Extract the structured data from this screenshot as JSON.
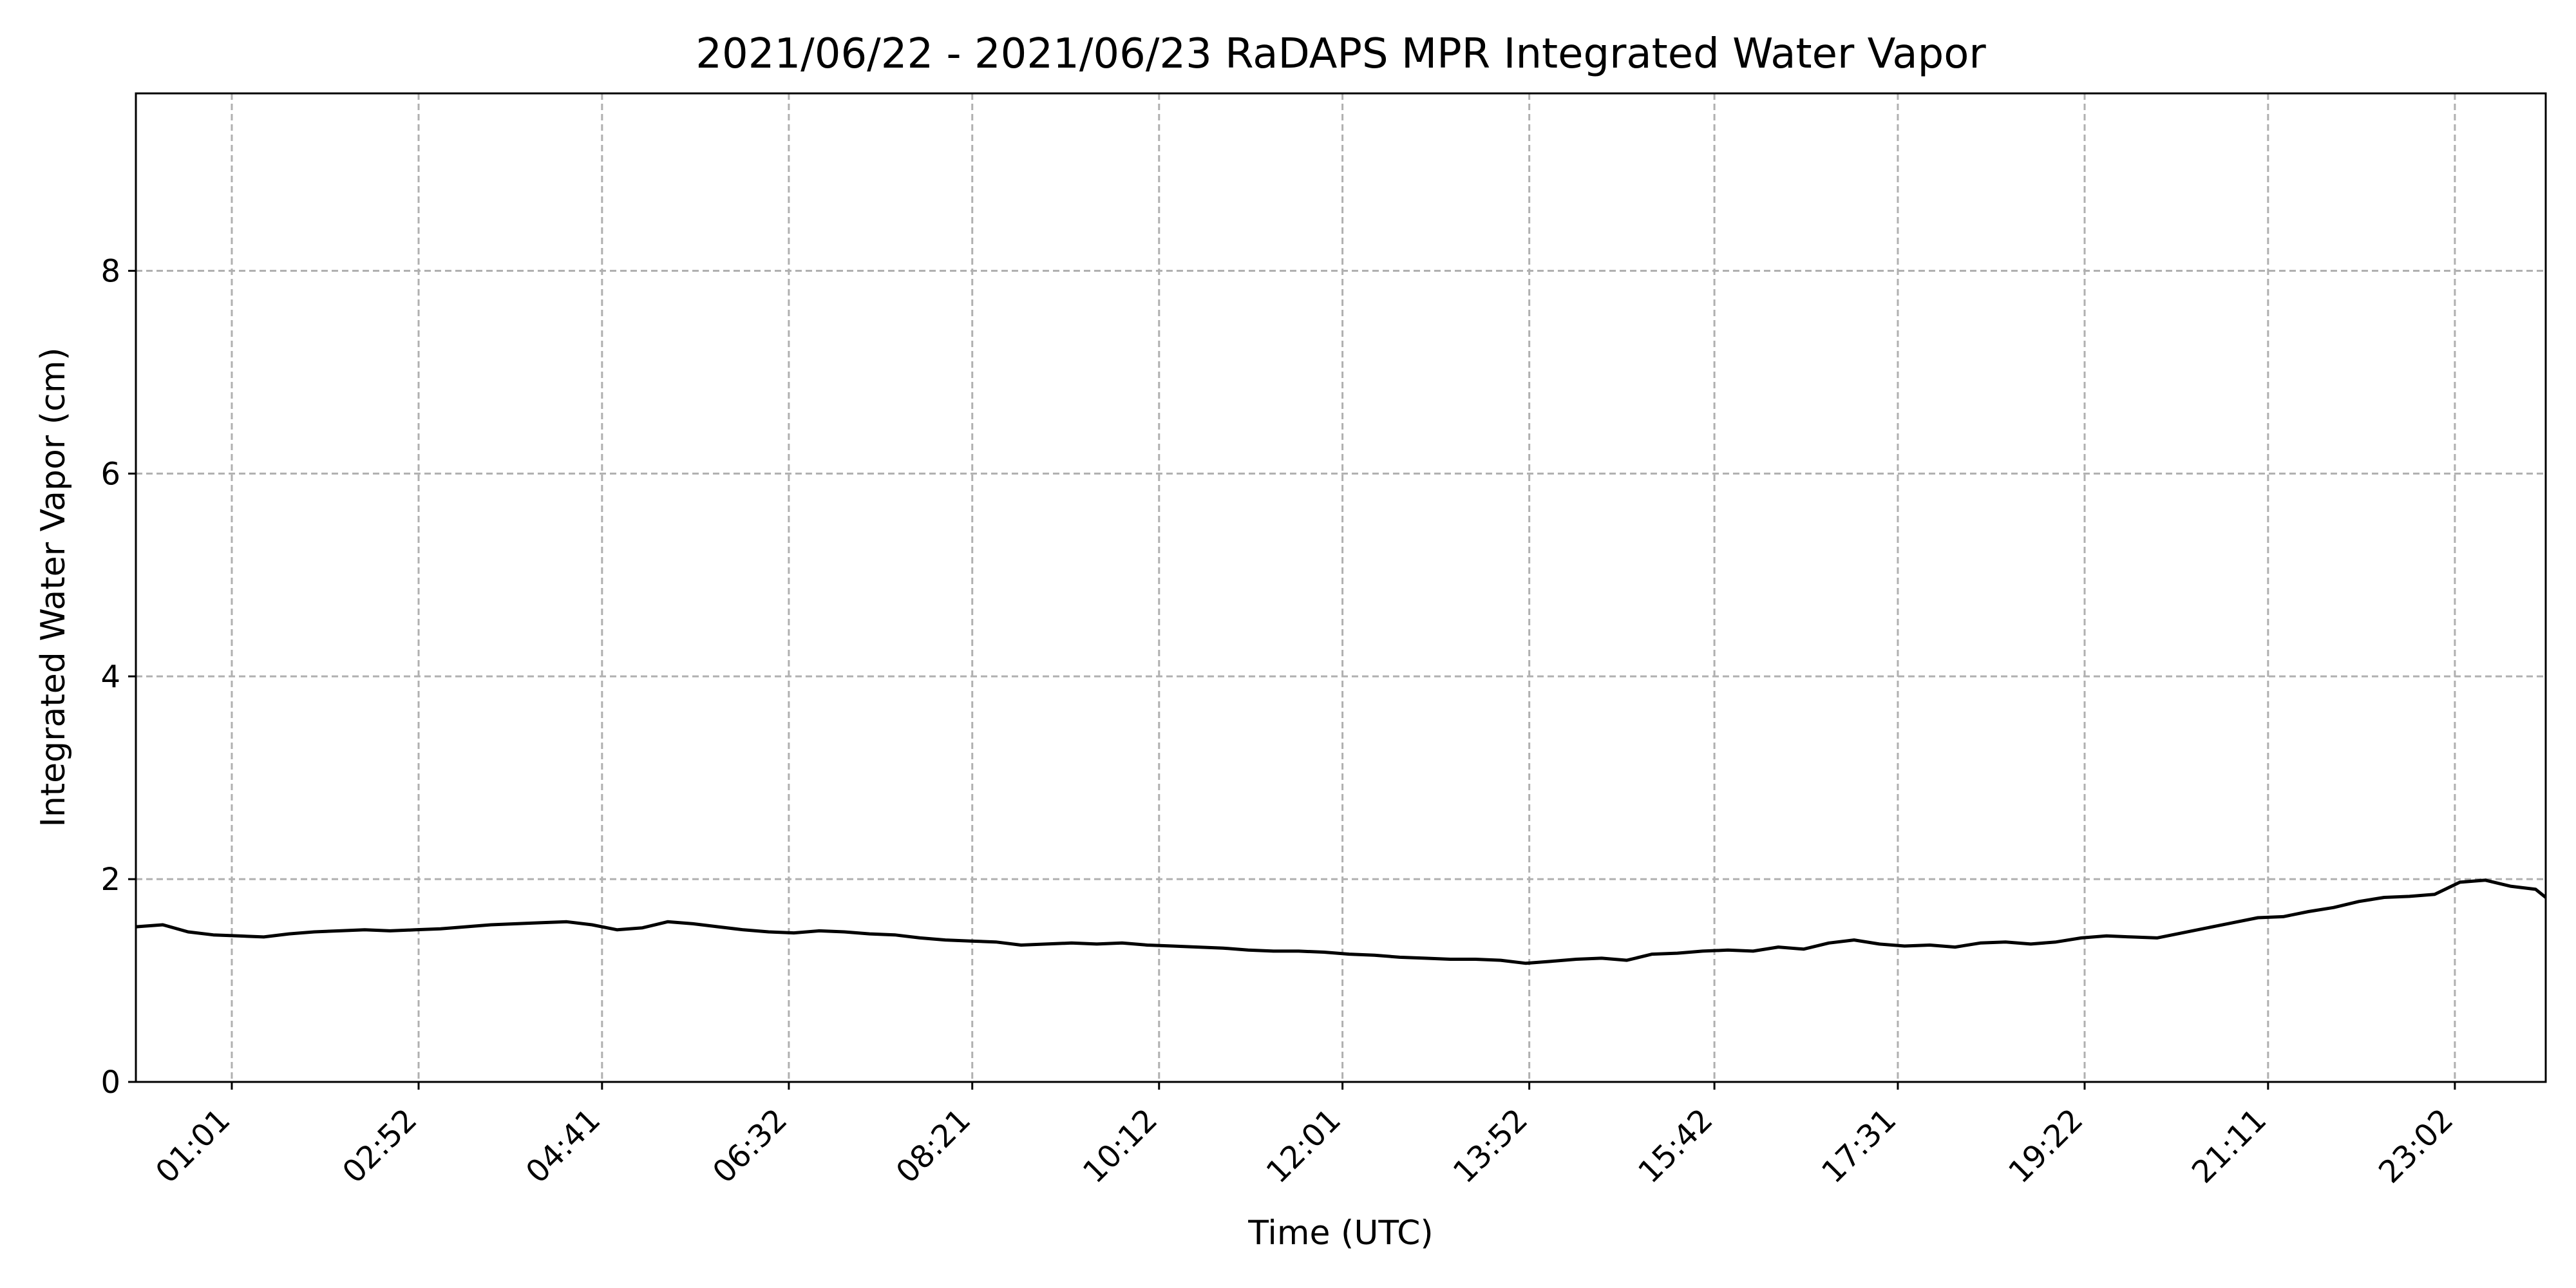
{
  "chart_data": {
    "type": "line",
    "title": "2021/06/22 - 2021/06/23 RaDAPS MPR Integrated Water Vapor",
    "xlabel": "Time (UTC)",
    "ylabel": "Integrated Water Vapor (cm)",
    "xlim": [
      "00:04",
      "23:56"
    ],
    "ylim": [
      0,
      9.75
    ],
    "x_ticks": [
      "01:01",
      "02:52",
      "04:41",
      "06:32",
      "08:21",
      "10:12",
      "12:01",
      "13:52",
      "15:42",
      "17:31",
      "19:22",
      "21:11",
      "23:02"
    ],
    "y_ticks": [
      0,
      2,
      4,
      6,
      8
    ],
    "grid": true,
    "line_color": "#000000",
    "grid_color": "#b0b0b0",
    "series": [
      {
        "x": [
          "00:04",
          "00:20",
          "00:35",
          "00:50",
          "01:05",
          "01:20",
          "01:35",
          "01:50",
          "02:05",
          "02:20",
          "02:35",
          "02:50",
          "03:05",
          "03:20",
          "03:35",
          "03:50",
          "04:05",
          "04:20",
          "04:35",
          "04:50",
          "05:05",
          "05:20",
          "05:35",
          "05:50",
          "06:05",
          "06:20",
          "06:35",
          "06:50",
          "07:05",
          "07:20",
          "07:35",
          "07:50",
          "08:05",
          "08:20",
          "08:35",
          "08:50",
          "09:05",
          "09:20",
          "09:35",
          "09:50",
          "10:05",
          "10:20",
          "10:35",
          "10:50",
          "11:05",
          "11:20",
          "11:35",
          "11:50",
          "12:05",
          "12:20",
          "12:35",
          "12:50",
          "13:05",
          "13:20",
          "13:35",
          "13:50",
          "14:05",
          "14:20",
          "14:35",
          "14:50",
          "15:05",
          "15:20",
          "15:35",
          "15:50",
          "16:05",
          "16:20",
          "16:35",
          "16:50",
          "17:05",
          "17:20",
          "17:35",
          "17:50",
          "18:05",
          "18:20",
          "18:35",
          "18:50",
          "19:05",
          "19:20",
          "19:35",
          "19:50",
          "20:05",
          "20:20",
          "20:35",
          "20:50",
          "21:05",
          "21:20",
          "21:35",
          "21:50",
          "22:05",
          "22:20",
          "22:35",
          "22:50",
          "23:05",
          "23:20",
          "23:35",
          "23:50",
          "23:56"
        ],
        "values": [
          1.53,
          1.55,
          1.48,
          1.45,
          1.44,
          1.43,
          1.46,
          1.48,
          1.49,
          1.5,
          1.49,
          1.5,
          1.51,
          1.53,
          1.55,
          1.56,
          1.57,
          1.58,
          1.55,
          1.5,
          1.52,
          1.58,
          1.56,
          1.53,
          1.5,
          1.48,
          1.47,
          1.49,
          1.48,
          1.46,
          1.45,
          1.42,
          1.4,
          1.39,
          1.38,
          1.35,
          1.36,
          1.37,
          1.36,
          1.37,
          1.35,
          1.34,
          1.33,
          1.32,
          1.3,
          1.29,
          1.29,
          1.28,
          1.26,
          1.25,
          1.23,
          1.22,
          1.21,
          1.21,
          1.2,
          1.17,
          1.19,
          1.21,
          1.22,
          1.2,
          1.26,
          1.27,
          1.29,
          1.3,
          1.29,
          1.33,
          1.31,
          1.37,
          1.4,
          1.36,
          1.34,
          1.35,
          1.33,
          1.37,
          1.38,
          1.36,
          1.38,
          1.42,
          1.44,
          1.43,
          1.42,
          1.47,
          1.52,
          1.57,
          1.62,
          1.63,
          1.68,
          1.72,
          1.78,
          1.82,
          1.83,
          1.85,
          1.97,
          1.99,
          1.93,
          1.9,
          1.82
        ]
      }
    ]
  }
}
